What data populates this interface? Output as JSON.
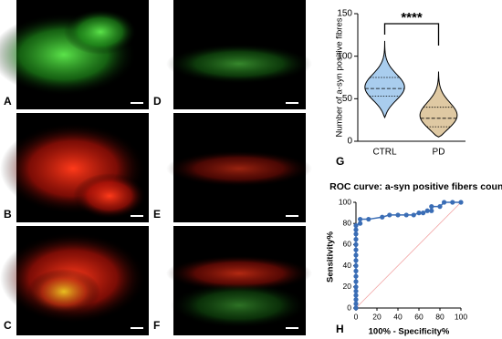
{
  "panels": [
    {
      "label": "A"
    },
    {
      "label": "B"
    },
    {
      "label": "C"
    },
    {
      "label": "D"
    },
    {
      "label": "E"
    },
    {
      "label": "F"
    }
  ],
  "chart_data": [
    {
      "type": "violin",
      "panel_label": "G",
      "ylabel": "Number of a-syn positive fibres",
      "categories": [
        "CTRL",
        "PD"
      ],
      "colors": [
        "#a9cdee",
        "#dfc9a3"
      ],
      "violins": [
        {
          "min": 28,
          "q1": 53,
          "median": 62,
          "q3": 75,
          "max": 118
        },
        {
          "min": 5,
          "q1": 17,
          "median": 27,
          "q3": 40,
          "max": 82
        }
      ],
      "annotation": "****",
      "ylim": [
        0,
        150
      ],
      "yticks": [
        0,
        50,
        100,
        150
      ]
    },
    {
      "type": "line",
      "panel_label": "H",
      "title": "ROC curve: a-syn positive fibers count",
      "xlabel": "100% - Specificity%",
      "ylabel": "Sensitivity%",
      "xlim": [
        0,
        100
      ],
      "ylim": [
        0,
        100
      ],
      "xticks": [
        0,
        20,
        40,
        60,
        80,
        100
      ],
      "yticks": [
        0,
        20,
        40,
        60,
        80,
        100
      ],
      "series": [
        {
          "color": "#3a6db5",
          "x": [
            0,
            0,
            0,
            0,
            0,
            0,
            0,
            0,
            0,
            0,
            0,
            0,
            0,
            0,
            0,
            0,
            0,
            0,
            4,
            4,
            12,
            25,
            32,
            40,
            48,
            55,
            60,
            64,
            68,
            72,
            72,
            80,
            84,
            92,
            100
          ],
          "values": [
            0,
            4,
            8,
            12,
            16,
            20,
            25,
            30,
            35,
            40,
            45,
            50,
            55,
            60,
            65,
            70,
            74,
            78,
            80,
            84,
            84,
            86,
            88,
            88,
            88,
            88,
            90,
            90,
            92,
            92,
            96,
            96,
            100,
            100,
            100
          ]
        },
        {
          "color": "#f2a3a3",
          "x": [
            0,
            100
          ],
          "values": [
            0,
            100
          ]
        }
      ]
    }
  ]
}
